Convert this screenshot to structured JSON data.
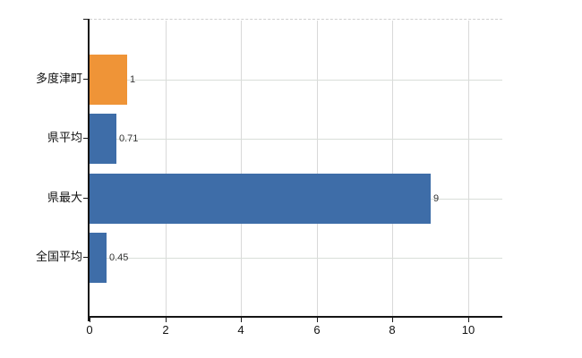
{
  "chart_data": {
    "type": "bar",
    "orientation": "horizontal",
    "title": "",
    "xlabel": "",
    "ylabel": "",
    "legend": "none",
    "grid": "on",
    "categories": [
      "多度津町",
      "県平均",
      "県最大",
      "全国平均"
    ],
    "values": [
      1,
      0.71,
      9,
      0.45
    ],
    "value_labels": [
      "1",
      "0.71",
      "9",
      "0.45"
    ],
    "bar_colors": [
      "#ef9437",
      "#3e6da8",
      "#3e6da8",
      "#3e6da8"
    ],
    "xlim": [
      0,
      10.9
    ],
    "xticks": [
      0,
      2,
      4,
      6,
      8,
      10
    ],
    "xtick_labels": [
      "0",
      "2",
      "4",
      "6",
      "8",
      "10"
    ],
    "colors": {
      "bar_blue": "#3e6da8",
      "bar_orange": "#ef9437",
      "grid_line": "#d9d9d9",
      "axis_line": "#151515",
      "text": "#111111",
      "value_text": "#333333",
      "background": "#ffffff"
    }
  }
}
